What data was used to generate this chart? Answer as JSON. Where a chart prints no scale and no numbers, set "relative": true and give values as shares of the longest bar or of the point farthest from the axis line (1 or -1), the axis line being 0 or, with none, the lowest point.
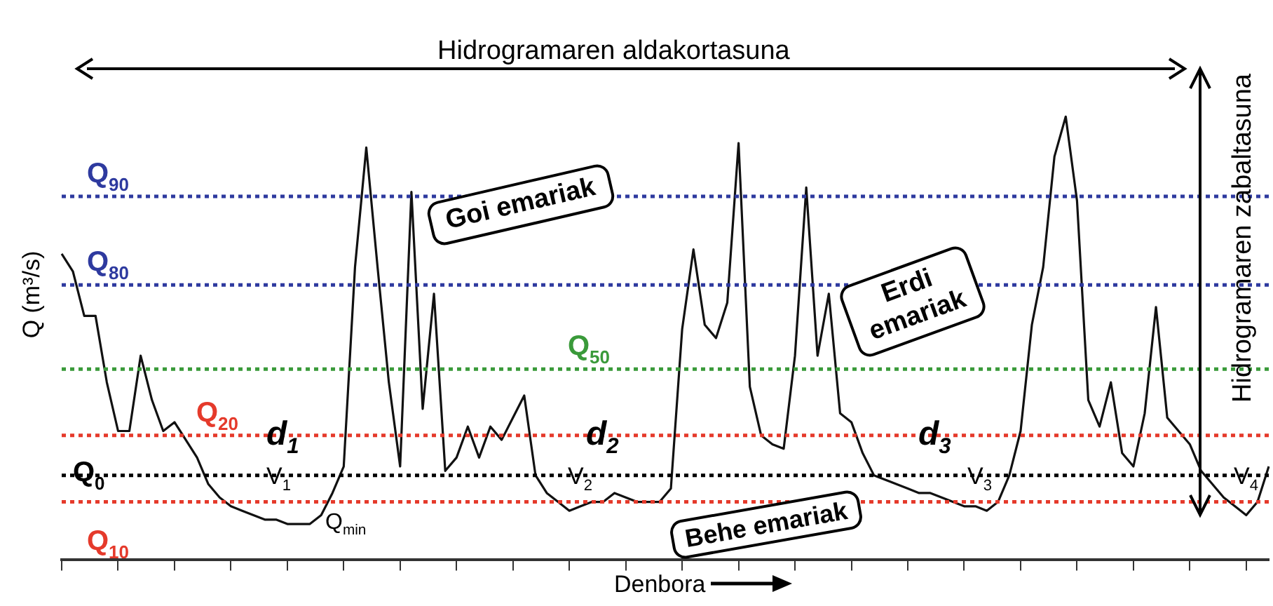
{
  "chart_data": {
    "type": "line",
    "relative": true,
    "xlabel": "Denbora",
    "ylabel": "Q (m³/s)",
    "categories": [
      null,
      null,
      null,
      null,
      null,
      null,
      null,
      null,
      null,
      null,
      null,
      null,
      null,
      null,
      null,
      null,
      null,
      null,
      null,
      null,
      null,
      null,
      null,
      null,
      null,
      null,
      null,
      null,
      null,
      null,
      null,
      null,
      null,
      null,
      null,
      null,
      null,
      null,
      null,
      null,
      null,
      null,
      null,
      null,
      null,
      null,
      null,
      null,
      null,
      null,
      null,
      null,
      null,
      null,
      null,
      null,
      null,
      null,
      null,
      null,
      null,
      null,
      null,
      null,
      null,
      null,
      null,
      null,
      null,
      null,
      null,
      null,
      null,
      null,
      null,
      null,
      null,
      null,
      null,
      null,
      null,
      null,
      null,
      null,
      null,
      null,
      null,
      null,
      null,
      null,
      null,
      null,
      null,
      null,
      null,
      null,
      null,
      null,
      null,
      null,
      null,
      null,
      null,
      null,
      null,
      null,
      null,
      null
    ],
    "series": [
      {
        "color": "#111111",
        "values": [
          0.69,
          0.65,
          0.55,
          0.55,
          0.4,
          0.29,
          0.29,
          0.46,
          0.36,
          0.29,
          0.31,
          0.27,
          0.23,
          0.17,
          0.14,
          0.12,
          0.11,
          0.1,
          0.09,
          0.09,
          0.08,
          0.08,
          0.08,
          0.1,
          0.15,
          0.21,
          0.66,
          0.93,
          0.66,
          0.4,
          0.21,
          0.83,
          0.34,
          0.6,
          0.2,
          0.23,
          0.3,
          0.23,
          0.3,
          0.27,
          0.32,
          0.37,
          0.19,
          0.15,
          0.13,
          0.11,
          0.12,
          0.13,
          0.13,
          0.15,
          0.14,
          0.13,
          0.13,
          0.13,
          0.16,
          0.52,
          0.7,
          0.53,
          0.5,
          0.58,
          0.94,
          0.39,
          0.28,
          0.26,
          0.25,
          0.46,
          0.84,
          0.46,
          0.6,
          0.33,
          0.31,
          0.24,
          0.19,
          0.18,
          0.17,
          0.16,
          0.15,
          0.15,
          0.14,
          0.13,
          0.12,
          0.12,
          0.11,
          0.13,
          0.19,
          0.29,
          0.53,
          0.66,
          0.91,
          1,
          0.81,
          0.36,
          0.3,
          0.4,
          0.24,
          0.21,
          0.33,
          0.57,
          0.32,
          0.29,
          0.26,
          0.2,
          0.17,
          0.14,
          0.12,
          0.1,
          0.13,
          0.21
        ]
      }
    ],
    "ref_lines": [
      {
        "axis": "y",
        "value": 0.82,
        "label": "Q$_{90}$",
        "color": "#2e3a9f",
        "line_style": "dotted"
      },
      {
        "axis": "y",
        "value": 0.62,
        "label": "Q$_{80}$",
        "color": "#2e3a9f",
        "line_style": "dotted"
      },
      {
        "axis": "y",
        "value": 0.43,
        "label": "Q$_{50}$",
        "color": "#3a9a3a",
        "line_style": "dotted"
      },
      {
        "axis": "y",
        "value": 0.28,
        "label": "Q$_{20}$",
        "color": "#e53a2b",
        "line_style": "dotted"
      },
      {
        "axis": "y",
        "value": 0.19,
        "label": "Q$_{0}$",
        "color": "#000000",
        "line_style": "dotted"
      },
      {
        "axis": "y",
        "value": 0.13,
        "label": "Q$_{10}$",
        "color": "#e53a2b",
        "line_style": "dotted"
      }
    ],
    "annotations": [
      "Hidrogramaren aldakortasuna",
      "Hidrogramaren zabaltasuna",
      "Goi emariak",
      "Erdi emariak",
      "Behe emariak",
      "d$_{1}$",
      "d$_{2}$",
      "d$_{3}$",
      "V$_{1}$",
      "V$_{2}$",
      "V$_{3}$",
      "V$_{4}$",
      "Q$_{min}$"
    ],
    "grid": false,
    "legend": false,
    "marker": "none",
    "line_style": "solid"
  }
}
